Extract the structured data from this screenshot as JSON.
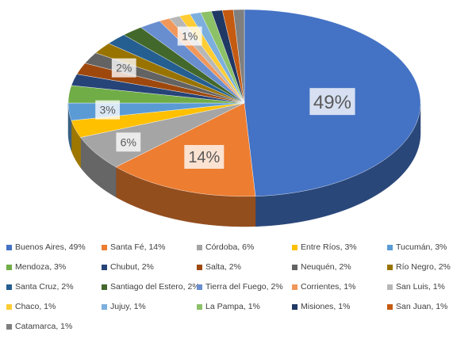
{
  "chart_data": {
    "type": "pie",
    "title": "",
    "slices": [
      {
        "name": "Buenos Aires",
        "value": 49,
        "color": "#4472C4",
        "legend": "Buenos Aires, 49%",
        "label": "49%"
      },
      {
        "name": "Santa Fé",
        "value": 14,
        "color": "#ED7D31",
        "legend": "Santa Fé, 14%",
        "label": "14%"
      },
      {
        "name": "Córdoba",
        "value": 6,
        "color": "#A5A5A5",
        "legend": "Córdoba, 6%",
        "label": "6%"
      },
      {
        "name": "Entre Ríos",
        "value": 3,
        "color": "#FFC000",
        "legend": "Entre Ríos, 3%",
        "label": ""
      },
      {
        "name": "Tucumán",
        "value": 3,
        "color": "#5B9BD5",
        "legend": "Tucumán, 3%",
        "label": "3%"
      },
      {
        "name": "Mendoza",
        "value": 3,
        "color": "#70AD47",
        "legend": "Mendoza, 3%",
        "label": ""
      },
      {
        "name": "Chubut",
        "value": 2,
        "color": "#264478",
        "legend": "Chubut, 2%",
        "label": ""
      },
      {
        "name": "Salta",
        "value": 2,
        "color": "#9E480E",
        "legend": "Salta, 2%",
        "label": ""
      },
      {
        "name": "Neuquén",
        "value": 2,
        "color": "#636363",
        "legend": "Neuquén, 2%",
        "label": "2%"
      },
      {
        "name": "Río Negro",
        "value": 2,
        "color": "#997300",
        "legend": "Río Negro, 2%",
        "label": ""
      },
      {
        "name": "Santa Cruz",
        "value": 2,
        "color": "#255E91",
        "legend": "Santa Cruz, 2%",
        "label": ""
      },
      {
        "name": "Santiago del Estero",
        "value": 2,
        "color": "#43682B",
        "legend": "Santiago del Estero, 2%",
        "label": ""
      },
      {
        "name": "Tierra del Fuego",
        "value": 2,
        "color": "#698ED0",
        "legend": "Tierra del Fuego, 2%",
        "label": ""
      },
      {
        "name": "Corrientes",
        "value": 1,
        "color": "#F1975A",
        "legend": "Corrientes, 1%",
        "label": ""
      },
      {
        "name": "San Luis",
        "value": 1,
        "color": "#B7B7B7",
        "legend": "San Luis, 1%",
        "label": "1%"
      },
      {
        "name": "Chaco",
        "value": 1,
        "color": "#FFCD33",
        "legend": "Chaco, 1%",
        "label": ""
      },
      {
        "name": "Jujuy",
        "value": 1,
        "color": "#7CAFDD",
        "legend": "Jujuy, 1%",
        "label": ""
      },
      {
        "name": "La Pampa",
        "value": 1,
        "color": "#8CC168",
        "legend": "La Pampa, 1%",
        "label": ""
      },
      {
        "name": "Misiones",
        "value": 1,
        "color": "#203864",
        "legend": "Misiones, 1%",
        "label": ""
      },
      {
        "name": "San Juan",
        "value": 1,
        "color": "#C55A11",
        "legend": "San Juan, 1%",
        "label": ""
      },
      {
        "name": "Catamarca",
        "value": 1,
        "color": "#7F7F7F",
        "legend": "Catamarca, 1%",
        "label": ""
      }
    ],
    "legend_position": "bottom",
    "style": "3d-pie"
  }
}
